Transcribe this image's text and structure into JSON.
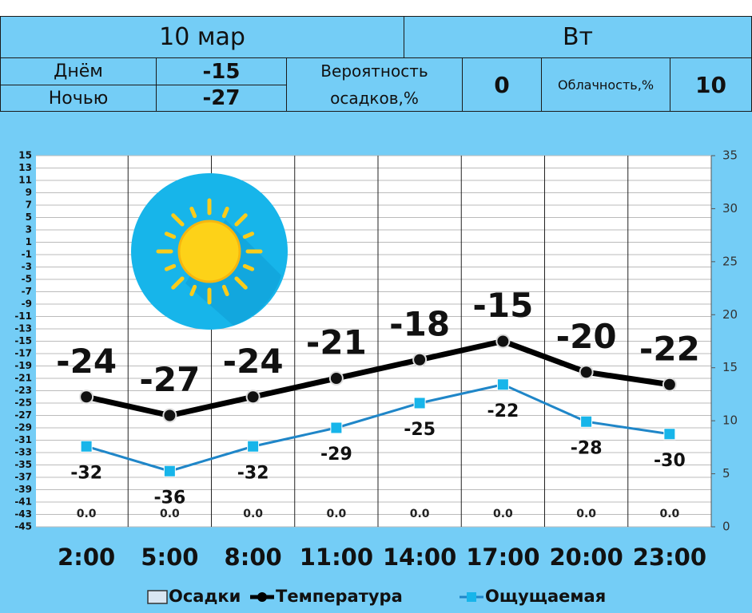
{
  "header": {
    "date": "10 мар",
    "weekday": "Вт",
    "day_label": "Днём",
    "day_temp": -15,
    "night_label": "Ночью",
    "night_temp": -27,
    "precip_label": "Вероятность осадков,%",
    "precip_prob": 0,
    "cloud_label": "Облачность,%",
    "cloudiness": 10
  },
  "chart_data": {
    "type": "line",
    "categories": [
      "2:00",
      "5:00",
      "8:00",
      "11:00",
      "14:00",
      "17:00",
      "20:00",
      "23:00"
    ],
    "series": [
      {
        "name": "Осадки",
        "type": "bar",
        "axis": "y2",
        "color": "#d9e6f2",
        "values": [
          0,
          0,
          0,
          0,
          0,
          0,
          0,
          0
        ],
        "value_labels": [
          "0.0",
          "0.0",
          "0.0",
          "0.0",
          "0.0",
          "0.0",
          "0.0",
          "0.0"
        ]
      },
      {
        "name": "Температура",
        "type": "line",
        "color": "#000000",
        "marker": "circle",
        "values": [
          -24,
          -27,
          -24,
          -21,
          -18,
          -15,
          -20,
          -22
        ]
      },
      {
        "name": "Ощущаемая",
        "type": "line",
        "color": "#1f86c8",
        "marker": "square",
        "values": [
          -32,
          -36,
          -32,
          -29,
          -25,
          -22,
          -28,
          -30
        ]
      }
    ],
    "ylim": [
      -45,
      15
    ],
    "yticks": [
      15,
      13,
      11,
      9,
      7,
      5,
      3,
      1,
      -1,
      -3,
      -5,
      -7,
      -9,
      -11,
      -13,
      -15,
      -17,
      -19,
      -21,
      -23,
      -25,
      -27,
      -29,
      -31,
      -33,
      -35,
      -37,
      -39,
      -41,
      -43,
      -45
    ],
    "y2lim": [
      0,
      35
    ],
    "y2ticks": [
      0,
      5,
      10,
      15,
      20,
      25,
      30,
      35
    ],
    "grid": true
  }
}
